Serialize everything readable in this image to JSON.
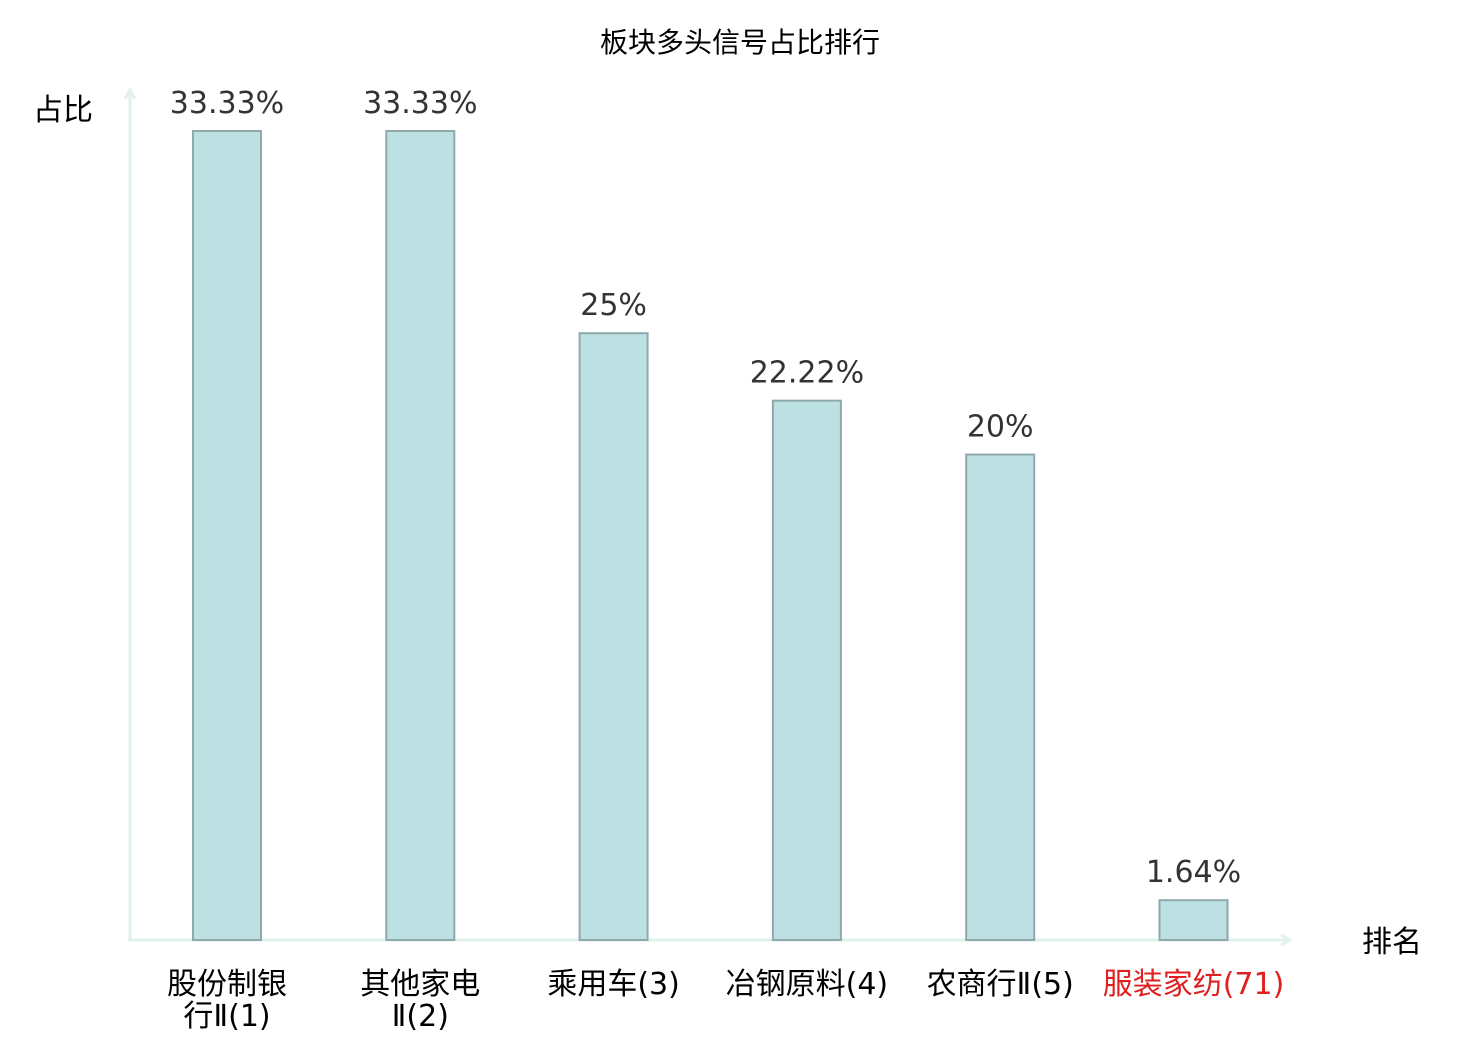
{
  "colors": {
    "bar_fill": "#bde0e3",
    "bar_stroke": "#8fa9ab",
    "axis": "#e0f2ef",
    "highlight": "#e02020"
  },
  "chart_data": {
    "type": "bar",
    "title": "板块多头信号占比排行",
    "ylabel": "占比",
    "xlabel": "排名",
    "ylim": [
      0,
      33.33
    ],
    "grid": false,
    "categories": [
      {
        "lines": [
          "股份制银",
          "行Ⅱ(1)"
        ],
        "highlight": false
      },
      {
        "lines": [
          "其他家电",
          "Ⅱ(2)"
        ],
        "highlight": false
      },
      {
        "lines": [
          "乘用车(3)"
        ],
        "highlight": false
      },
      {
        "lines": [
          "冶钢原料(4)"
        ],
        "highlight": false
      },
      {
        "lines": [
          "农商行Ⅱ(5)"
        ],
        "highlight": false
      },
      {
        "lines": [
          "服装家纺(71)"
        ],
        "highlight": true
      }
    ],
    "values": [
      33.33,
      33.33,
      25,
      22.22,
      20,
      1.64
    ],
    "value_labels": [
      "33.33%",
      "33.33%",
      "25%",
      "22.22%",
      "20%",
      "1.64%"
    ]
  }
}
